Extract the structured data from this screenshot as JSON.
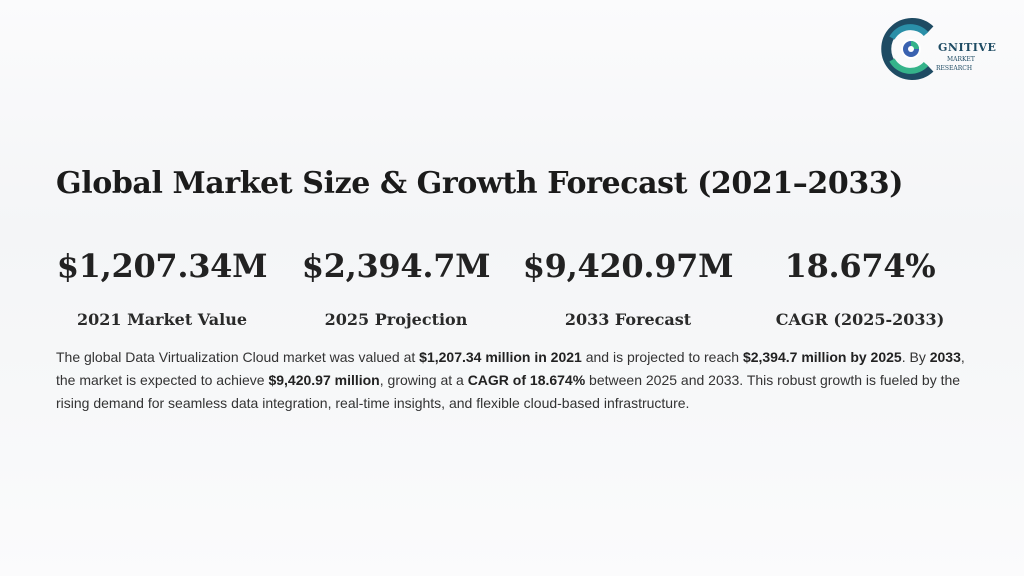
{
  "logo": {
    "word": "GNITIVE",
    "line1": "MARKET",
    "line2": "RESEARCH",
    "colors": [
      "#1e4b63",
      "#2a8fa8",
      "#35b38a",
      "#3a62b0"
    ]
  },
  "title": "Global Market Size & Growth Forecast (2021–2033)",
  "stats": [
    {
      "value": "$1,207.34M",
      "label": "2021 Market Value"
    },
    {
      "value": "$2,394.7M",
      "label": "2025 Projection"
    },
    {
      "value": "$9,420.97M",
      "label": "2033 Forecast"
    },
    {
      "value": "18.674%",
      "label": "CAGR (2025-2033)"
    }
  ],
  "description": {
    "t1": "The global Data Virtualization Cloud market was valued at ",
    "b1": "$1,207.34 million in 2021",
    "t2": " and is projected to reach ",
    "b2": "$2,394.7 million by 2025",
    "t3": ". By ",
    "b3": "2033",
    "t4": ", the market is expected to achieve ",
    "b4": "$9,420.97 million",
    "t5": ", growing at a ",
    "b5": "CAGR of 18.674%",
    "t6": " between 2025 and 2033. This robust growth is fueled by the rising demand for seamless data integration, real-time insights, and flexible cloud-based infrastructure."
  }
}
